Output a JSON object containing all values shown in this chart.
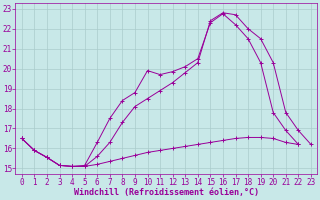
{
  "background_color": "#c8e8e8",
  "grid_color": "#b0d0d0",
  "line_color": "#990099",
  "xlabel": "Windchill (Refroidissement éolien,°C)",
  "tick_fontsize": 5.5,
  "xlim": [
    -0.5,
    23.5
  ],
  "ylim": [
    14.7,
    23.3
  ],
  "yticks": [
    15,
    16,
    17,
    18,
    19,
    20,
    21,
    22,
    23
  ],
  "xticks": [
    0,
    1,
    2,
    3,
    4,
    5,
    6,
    7,
    8,
    9,
    10,
    11,
    12,
    13,
    14,
    15,
    16,
    17,
    18,
    19,
    20,
    21,
    22,
    23
  ],
  "line1_x": [
    0,
    1,
    2,
    3,
    4,
    5,
    6,
    7,
    8,
    9,
    10,
    11,
    12,
    13,
    14,
    15,
    16,
    17,
    18,
    19,
    20,
    21,
    22
  ],
  "line1_y": [
    16.5,
    15.9,
    15.55,
    15.15,
    15.1,
    15.1,
    15.2,
    15.35,
    15.5,
    15.65,
    15.8,
    15.9,
    16.0,
    16.1,
    16.2,
    16.3,
    16.4,
    16.5,
    16.55,
    16.55,
    16.5,
    16.3,
    16.2
  ],
  "line2_x": [
    0,
    1,
    2,
    3,
    4,
    5,
    6,
    7,
    8,
    9,
    10,
    11,
    12,
    13,
    14,
    15,
    16,
    17,
    18,
    19,
    20,
    21,
    22
  ],
  "line2_y": [
    16.5,
    15.9,
    15.55,
    15.15,
    15.1,
    15.15,
    16.3,
    17.5,
    18.4,
    18.8,
    19.9,
    19.7,
    19.85,
    20.1,
    20.5,
    22.3,
    22.75,
    22.2,
    21.5,
    20.3,
    17.8,
    16.9,
    16.2
  ],
  "line3_x": [
    0,
    1,
    2,
    3,
    4,
    5,
    6,
    7,
    8,
    9,
    10,
    11,
    12,
    13,
    14,
    15,
    16,
    17,
    18,
    19,
    20,
    21,
    22,
    23
  ],
  "line3_y": [
    16.5,
    15.9,
    15.55,
    15.15,
    15.1,
    15.1,
    15.6,
    16.3,
    17.3,
    18.1,
    18.5,
    18.9,
    19.3,
    19.8,
    20.3,
    22.4,
    22.8,
    22.7,
    22.0,
    21.5,
    20.3,
    17.8,
    16.9,
    16.2
  ]
}
